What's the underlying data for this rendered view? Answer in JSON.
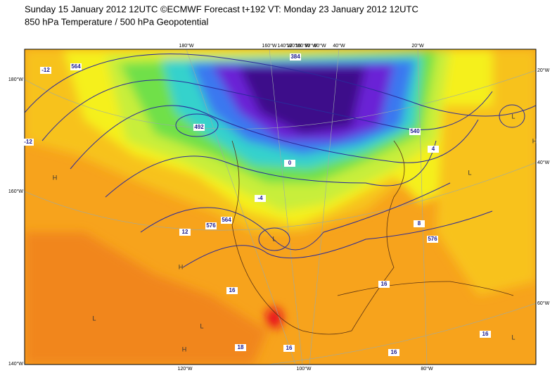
{
  "header": {
    "line1": "Sunday 15 January 2012 12UTC ©ECMWF Forecast t+192 VT: Monday 23 January 2012 12UTC",
    "line2": "850 hPa Temperature / 500 hPa Geopotential"
  },
  "map": {
    "left_labels": [
      "180°W",
      "160°W",
      "140°W"
    ],
    "right_labels": [
      "20°W",
      "40°W",
      "60°W"
    ],
    "top_labels": [
      "180°W",
      "160°W",
      "140°W",
      "120°W",
      "100°W",
      "80°W",
      "60°W",
      "40°W",
      "20°W"
    ],
    "bottom_labels": [
      "120°W",
      "100°W",
      "80°W"
    ],
    "contour_labels": [
      "492",
      "576",
      "564",
      "540",
      "576",
      "16",
      "18",
      "16",
      "-4",
      "0",
      "4",
      "8",
      "12",
      "16",
      "16",
      "16",
      "-12",
      "-12",
      "564",
      "384"
    ],
    "centers": [
      "L",
      "L",
      "H",
      "H",
      "L",
      "L",
      "H",
      "L",
      "L",
      "H"
    ]
  }
}
